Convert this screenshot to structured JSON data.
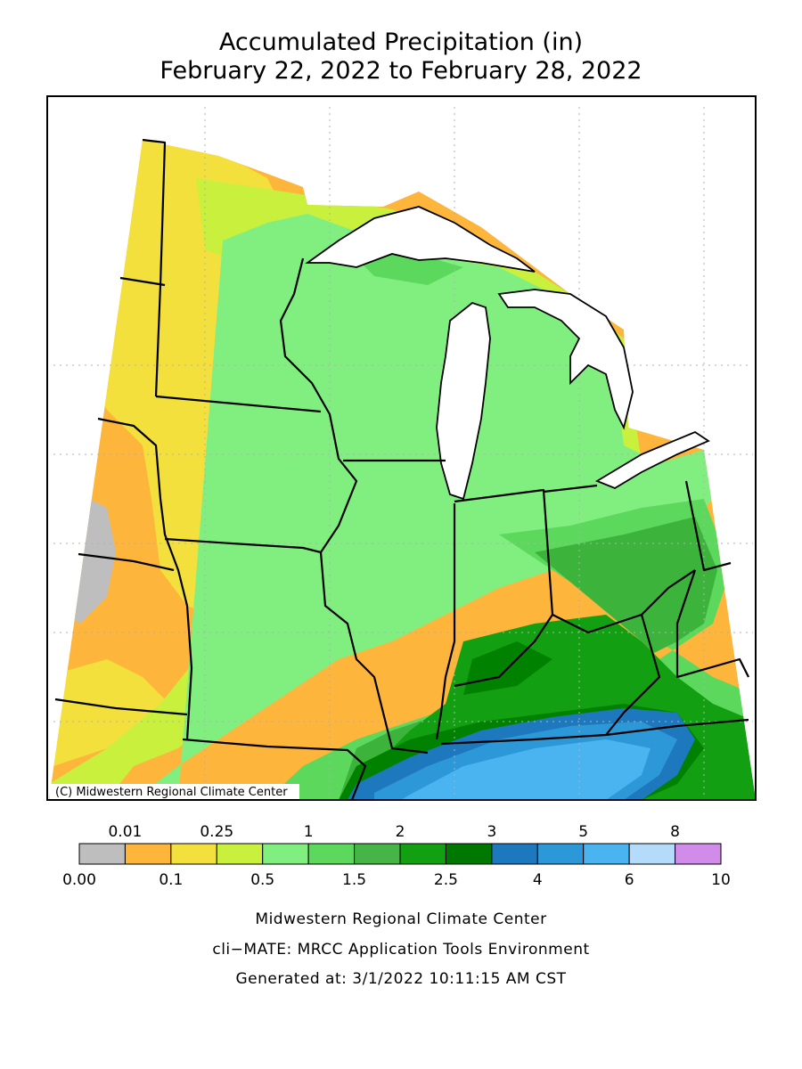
{
  "header": {
    "title": "Accumulated Precipitation (in)",
    "subtitle": "February 22, 2022 to February 28, 2022"
  },
  "map": {
    "credit": "(C) Midwestern Regional Climate Center"
  },
  "legend": {
    "colors": [
      "#bebebe",
      "#fdb53c",
      "#f3e03c",
      "#c8f03c",
      "#80ef80",
      "#5cd85c",
      "#46b446",
      "#12a012",
      "#007800",
      "#1e78be",
      "#2c98d8",
      "#4ab4f0",
      "#b4dcfa",
      "#d08ce8"
    ],
    "labels": [
      "0.00",
      "0.01",
      "0.1",
      "0.25",
      "0.5",
      "1",
      "1.5",
      "2",
      "2.5",
      "3",
      "4",
      "5",
      "6",
      "8",
      "10"
    ]
  },
  "footer": [
    "Midwestern Regional Climate Center",
    "cli−MATE: MRCC Application Tools Environment",
    "Generated at: 3/1/2022 10:11:15 AM CST"
  ]
}
